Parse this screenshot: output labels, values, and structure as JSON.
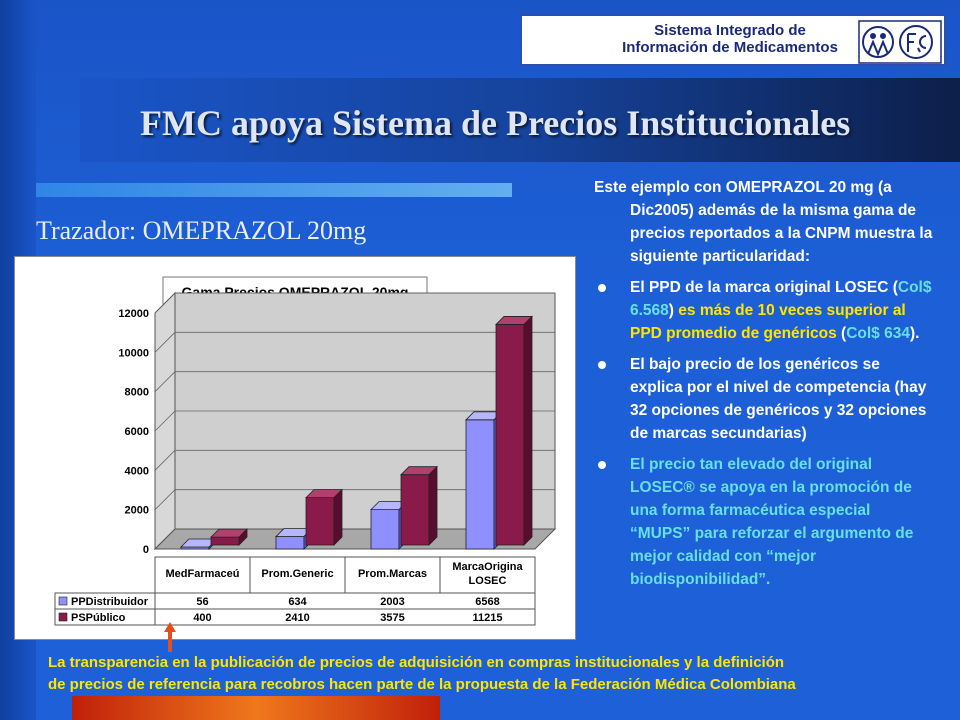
{
  "logo": {
    "line1": "Sistema Integrado de",
    "line2": "Información de Medicamentos"
  },
  "title": "FMC apoya Sistema de Precios Institucionales",
  "subtitle": "Trazador: OMEPRAZOL 20mg",
  "colors": {
    "background": "#1e60d8",
    "title_text": "#dfe6f2",
    "highlight_yellow": "#ffe600",
    "highlight_cyan": "#66e0e6",
    "series_distribuidor": "#8f8fff",
    "series_publico": "#8a1a4a"
  },
  "right_text": {
    "intro": "Este ejemplo con OMEPRAZOL 20 mg (a Dic2005) además de la misma gama de precios reportados a la CNPM muestra la siguiente particularidad:",
    "b1_p1": "El PPD de la marca original LOSEC (",
    "b1_p2": "Col$ 6.568",
    "b1_p3": ") ",
    "b1_p4": "es más de 10 veces superior al PPD promedio de genéricos",
    "b1_p5": " (",
    "b1_p6": "Col$ 634",
    "b1_p7": ").",
    "b2": "El bajo precio de los genéricos se explica por el nivel de competencia (hay 32 opciones de genéricos y 32 opciones de marcas secundarias)",
    "b3": "El precio tan elevado del original LOSEC® se apoya en la promoción de una forma farmacéutica especial “MUPS” para reforzar el argumento de mejor calidad con “mejor biodisponibilidad”."
  },
  "bottom_text": {
    "line1": "La transparencia en la publicación de precios de adquisición en compras institucionales y la definición",
    "line2": "de precios de referencia para recobros hacen parte de la propuesta de la Federación Médica Colombiana"
  },
  "chart_data": {
    "type": "bar",
    "title": "Gama Precios OMEPRAZOL 20mg",
    "categories": [
      "MedFarmaceú",
      "Prom.Generic",
      "Prom.Marcas",
      "MarcaOrigina\nLOSEC"
    ],
    "category_lines": [
      [
        "MedFarmaceú"
      ],
      [
        "Prom.Generic"
      ],
      [
        "Prom.Marcas"
      ],
      [
        "MarcaOrigina",
        "LOSEC"
      ]
    ],
    "series": [
      {
        "name": "PPDistribuidor",
        "values": [
          56,
          634,
          2003,
          6568
        ],
        "table": [
          "56",
          "634",
          "2003",
          "6568"
        ]
      },
      {
        "name": "PSPúblico",
        "values": [
          400,
          2410,
          3575,
          11215
        ],
        "table": [
          "400",
          "2410",
          "3575",
          "11215"
        ]
      }
    ],
    "y_ticks": [
      "0",
      "2000",
      "4000",
      "6000",
      "8000",
      "10000",
      "12000"
    ],
    "ylim": [
      0,
      12000
    ],
    "grid": true,
    "legend": "table-bottom"
  }
}
